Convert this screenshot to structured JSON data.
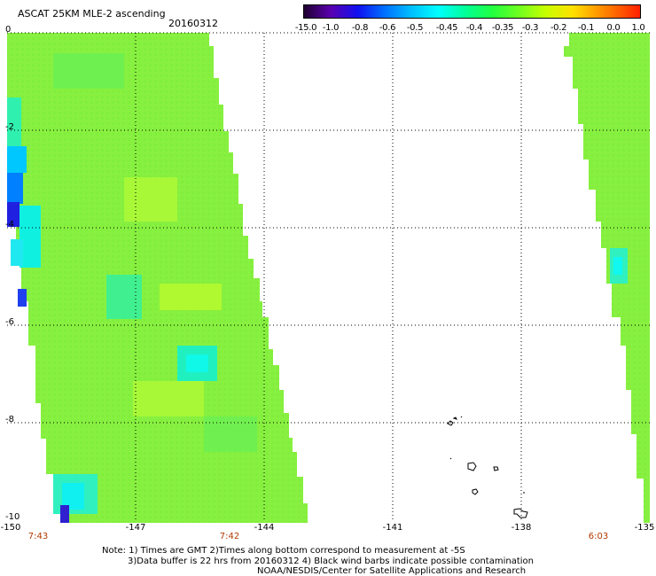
{
  "header": {
    "title": "ASCAT 25KM MLE-2 ascending",
    "date": "20160312"
  },
  "colorbar": {
    "labels": [
      "-15.0",
      "-1.0",
      "-0.8",
      "-0.6",
      "-0.5",
      "-0.45",
      "-0.4",
      "-0.35",
      "-0.3",
      "-0.2",
      "-0.1",
      "0.0",
      "1.0"
    ],
    "colors": [
      "#200030",
      "#5a00b0",
      "#1010f0",
      "#0070ff",
      "#00c0ff",
      "#00ffff",
      "#00ff98",
      "#20ff40",
      "#70ff20",
      "#c8ff00",
      "#ffe000",
      "#ff8000",
      "#ff2000"
    ]
  },
  "map": {
    "y_ticks": [
      "0",
      "-2",
      "-4",
      "-6",
      "-8",
      "-10"
    ],
    "x_ticks": [
      "-150",
      "-147",
      "-144",
      "-141",
      "-138",
      "-135"
    ],
    "time_labels": [
      "7:43",
      "7:42",
      "6:03"
    ],
    "swath_color": "#88f040"
  },
  "notes": {
    "line1": "Note: 1) Times are GMT 2)Times along bottom correspond to measurement at -5S",
    "line2": "3)Data buffer is 22 hrs from 20160312 4) Black wind barbs indicate possible contamination",
    "line3": "NOAA/NESDIS/Center for Satellite Applications and Research"
  }
}
